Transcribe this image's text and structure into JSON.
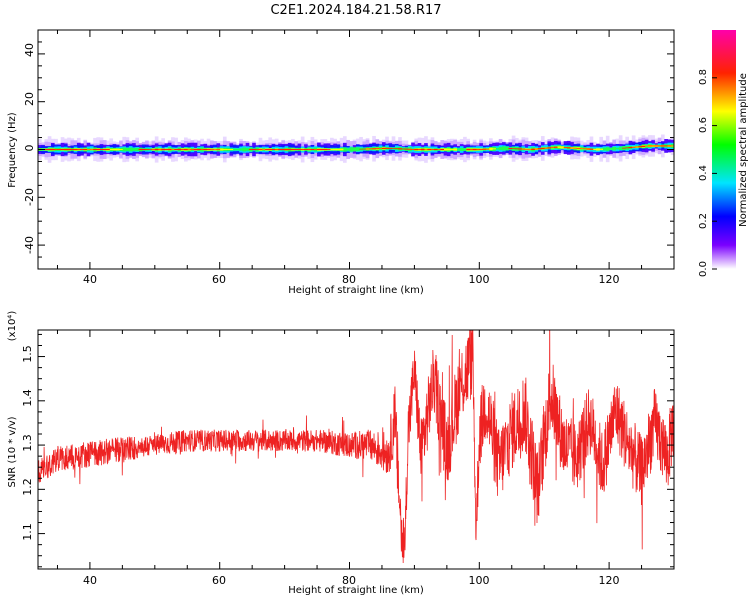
{
  "title": "C2E1.2024.184.21.58.R17",
  "colors": {
    "snr_line": "#ee2222",
    "background": "#ffffff",
    "axis": "#000000"
  },
  "chart_data": [
    {
      "type": "heatmap",
      "title": "C2E1.2024.184.21.58.R17",
      "xlabel": "Height of straight line (km)",
      "ylabel": "Frequency (Hz)",
      "xlim": [
        32,
        130
      ],
      "ylim": [
        -50,
        50
      ],
      "x_ticks": [
        "40",
        "60",
        "80",
        "100",
        "120"
      ],
      "y_ticks": [
        "40",
        "20",
        "0",
        "-20",
        "-40"
      ],
      "colorbar_label": "Normalized spectral amplitude",
      "colorbar_range": [
        0,
        1
      ],
      "colorbar_ticks": [
        "0.0",
        "0.2",
        "0.4",
        "0.6",
        "0.8"
      ],
      "colormap": "rainbow (violet-blue-cyan-green-yellow-red-magenta)",
      "band_center_hz": 0,
      "band_halfwidth_hz": 2,
      "peak_center_hz": [
        {
          "x": 34,
          "f": 0
        },
        {
          "x": 40,
          "f": 0
        },
        {
          "x": 50,
          "f": 0
        },
        {
          "x": 60,
          "f": 0
        },
        {
          "x": 70,
          "f": 0
        },
        {
          "x": 80,
          "f": 0
        },
        {
          "x": 86,
          "f": 0.5
        },
        {
          "x": 90,
          "f": 0
        },
        {
          "x": 100,
          "f": 0
        },
        {
          "x": 104,
          "f": 0.5
        },
        {
          "x": 108,
          "f": 0
        },
        {
          "x": 112,
          "f": 1
        },
        {
          "x": 118,
          "f": 0
        },
        {
          "x": 122,
          "f": 0.5
        },
        {
          "x": 126,
          "f": 1.5
        },
        {
          "x": 130,
          "f": 1.5
        }
      ]
    },
    {
      "type": "line",
      "xlabel": "Height of straight line (km)",
      "ylabel": "SNR (10 * v/v)",
      "y_scale_label": "(x10⁴)",
      "xlim": [
        32,
        130
      ],
      "ylim": [
        1.02,
        1.56
      ],
      "x_ticks": [
        "40",
        "60",
        "80",
        "100",
        "120"
      ],
      "y_ticks": [
        "1.1",
        "1.2",
        "1.3",
        "1.4",
        "1.5"
      ],
      "series": [
        {
          "x": [
            32,
            35,
            40,
            45,
            50,
            55,
            60,
            65,
            70,
            75,
            80,
            83,
            86,
            87,
            88,
            88.5,
            89,
            90,
            91,
            93,
            95,
            97,
            99,
            99.5,
            100,
            101,
            103,
            105,
            107,
            109,
            111,
            113,
            115,
            117,
            119,
            121,
            123,
            125,
            127,
            129,
            130
          ],
          "y": [
            1.24,
            1.27,
            1.28,
            1.29,
            1.3,
            1.31,
            1.31,
            1.31,
            1.31,
            1.31,
            1.3,
            1.3,
            1.28,
            1.36,
            1.1,
            1.07,
            1.32,
            1.47,
            1.28,
            1.45,
            1.29,
            1.43,
            1.5,
            1.1,
            1.32,
            1.4,
            1.25,
            1.33,
            1.38,
            1.2,
            1.42,
            1.3,
            1.27,
            1.36,
            1.25,
            1.38,
            1.3,
            1.24,
            1.35,
            1.27,
            1.36
          ],
          "noise": [
            0.03,
            0.03,
            0.03,
            0.03,
            0.025,
            0.025,
            0.025,
            0.025,
            0.025,
            0.025,
            0.03,
            0.035,
            0.05,
            0.08,
            0.08,
            0.05,
            0.08,
            0.06,
            0.08,
            0.08,
            0.09,
            0.09,
            0.09,
            0.06,
            0.08,
            0.09,
            0.09,
            0.09,
            0.09,
            0.09,
            0.09,
            0.08,
            0.08,
            0.08,
            0.08,
            0.08,
            0.08,
            0.08,
            0.08,
            0.08,
            0.08
          ]
        }
      ]
    }
  ]
}
